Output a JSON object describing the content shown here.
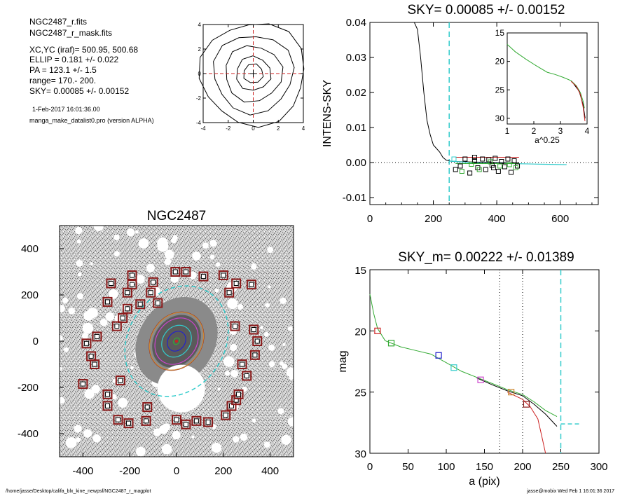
{
  "header": {
    "line1": "NGC2487_r.fits",
    "line2": "NGC2487_r_mask.fits",
    "line3": "XC,YC (iraf)=   500.95, 500.68",
    "line4": "ELLIP = 0.181 +/- 0.022",
    "line5": "PA    = 123.1 +/-   1.5",
    "line6": "range=  170.-  200.",
    "line7": "SKY= 0.00085 +/- 0.00152",
    "date": "1-Feb-2017 16:01:36.00",
    "program": "manga_make_datalist0.pro (version ALPHA)"
  },
  "footer": {
    "path": "/home/jasse/Desktop/califa_blx_kine_newpsf/NGC2487_r_magplot",
    "user": "jasse@mobix  Wed Feb  1 16:01:36 2017"
  },
  "colors": {
    "black": "#000000",
    "red": "#cc2222",
    "green": "#33aa33",
    "cyan": "#33cccc",
    "blue": "#2222cc",
    "magenta": "#cc44cc",
    "orange": "#cc8833",
    "darkred": "#8b1a1a"
  },
  "chart_data": [
    {
      "id": "centroid",
      "type": "contour",
      "xlim": [
        -4,
        4
      ],
      "ylim": [
        -4,
        4
      ],
      "xticks": [
        "-4",
        "-2",
        "0",
        "2",
        "4"
      ],
      "yticks": [
        "4",
        "2",
        "0",
        "-2",
        "-4"
      ],
      "contour_radii": [
        0.8,
        1.4,
        2.3,
        3.2,
        4.2
      ]
    },
    {
      "id": "sky",
      "type": "line",
      "title": "SKY= 0.00085 +/- 0.00152",
      "ylabel": "INTENS-SKY",
      "xlim": [
        0,
        720
      ],
      "ylim": [
        -0.012,
        0.04
      ],
      "xticks": [
        "0",
        "200",
        "400",
        "600"
      ],
      "yticks": [
        "0.04",
        "0.03",
        "0.02",
        "0.01",
        "0.00",
        "-0.01"
      ],
      "sky_radius": 250,
      "profile": [
        [
          120,
          0.04
        ],
        [
          140,
          0.04
        ],
        [
          150,
          0.038
        ],
        [
          160,
          0.03
        ],
        [
          170,
          0.02
        ],
        [
          180,
          0.012
        ],
        [
          190,
          0.008
        ],
        [
          200,
          0.005
        ],
        [
          210,
          0.004
        ],
        [
          220,
          0.003
        ],
        [
          230,
          0.0015
        ],
        [
          240,
          0.0007
        ],
        [
          250,
          0.0005
        ],
        [
          260,
          0.0003
        ],
        [
          300,
          0.0002
        ],
        [
          350,
          0.0001
        ],
        [
          420,
          0.0
        ],
        [
          470,
          -0.0001
        ]
      ],
      "tail": [
        [
          250,
          0.0004
        ],
        [
          350,
          -0.0002
        ],
        [
          450,
          -0.0003
        ],
        [
          550,
          -0.0005
        ],
        [
          620,
          -0.0006
        ]
      ],
      "boxes_black": [
        [
          270,
          -0.002
        ],
        [
          285,
          -0.001
        ],
        [
          300,
          0.001
        ],
        [
          315,
          -0.003
        ],
        [
          330,
          0.0005
        ],
        [
          340,
          -0.0015
        ],
        [
          355,
          0.001
        ],
        [
          365,
          -0.002
        ],
        [
          375,
          0.0008
        ],
        [
          385,
          -0.0008
        ],
        [
          395,
          0.0012
        ],
        [
          405,
          -0.0025
        ],
        [
          415,
          0.0003
        ],
        [
          425,
          -0.0012
        ],
        [
          435,
          0.001
        ],
        [
          445,
          -0.0028
        ],
        [
          455,
          0.0005
        ],
        [
          465,
          -0.001
        ],
        [
          330,
          0.0015
        ],
        [
          390,
          -0.0015
        ]
      ],
      "boxes_green": [
        [
          290,
          -0.0025
        ],
        [
          320,
          -0.0005
        ],
        [
          345,
          -0.002
        ],
        [
          380,
          0.0002
        ],
        [
          410,
          -0.001
        ],
        [
          440,
          -0.0006
        ],
        [
          460,
          -0.0015
        ]
      ],
      "boxes_cyan": [
        [
          265,
          0.001
        ]
      ],
      "inset": {
        "xlabel": "a^0.25",
        "xlim": [
          1,
          4
        ],
        "ylim": [
          15,
          31
        ],
        "xticks": [
          "1",
          "2",
          "3",
          "4"
        ],
        "yticks": [
          "15",
          "20",
          "25",
          "30"
        ],
        "green": [
          [
            1.0,
            17.0
          ],
          [
            1.3,
            18.3
          ],
          [
            1.7,
            19.6
          ],
          [
            2.1,
            20.8
          ],
          [
            2.5,
            21.9
          ],
          [
            2.8,
            22.3
          ],
          [
            3.1,
            22.8
          ],
          [
            3.4,
            23.4
          ],
          [
            3.6,
            24.3
          ],
          [
            3.75,
            25.5
          ],
          [
            3.85,
            27.0
          ],
          [
            3.9,
            28.2
          ]
        ],
        "red": [
          [
            3.4,
            23.5
          ],
          [
            3.6,
            24.4
          ],
          [
            3.75,
            25.8
          ],
          [
            3.85,
            28.0
          ],
          [
            3.92,
            30.5
          ]
        ],
        "black": [
          [
            3.5,
            24.0
          ],
          [
            3.7,
            25.2
          ],
          [
            3.85,
            27.6
          ],
          [
            3.93,
            30.0
          ]
        ]
      }
    },
    {
      "id": "image",
      "type": "image",
      "title": "NGC2487",
      "xlim": [
        -500,
        500
      ],
      "ylim": [
        -500,
        500
      ],
      "xticks": [
        "-400",
        "-200",
        "0",
        "200",
        "400"
      ],
      "yticks": [
        "400",
        "200",
        "0",
        "-200",
        "-400"
      ],
      "sky_boxes": [
        [
          -5,
          300
        ],
        [
          -190,
          285
        ],
        [
          -280,
          250
        ],
        [
          -190,
          245
        ],
        [
          -100,
          255
        ],
        [
          -110,
          210
        ],
        [
          -210,
          210
        ],
        [
          -80,
          165
        ],
        [
          -295,
          170
        ],
        [
          -155,
          160
        ],
        [
          -210,
          140
        ],
        [
          40,
          300
        ],
        [
          115,
          280
        ],
        [
          200,
          285
        ],
        [
          255,
          250
        ],
        [
          320,
          245
        ],
        [
          225,
          210
        ],
        [
          -230,
          100
        ],
        [
          -255,
          65
        ],
        [
          -340,
          20
        ],
        [
          -385,
          -10
        ],
        [
          -365,
          -65
        ],
        [
          -350,
          -100
        ],
        [
          -400,
          -185
        ],
        [
          -240,
          -170
        ],
        [
          -295,
          -230
        ],
        [
          -295,
          -280
        ],
        [
          -250,
          -340
        ],
        [
          -205,
          -355
        ],
        [
          -125,
          -285
        ],
        [
          -130,
          -345
        ],
        [
          0,
          -340
        ],
        [
          40,
          -360
        ],
        [
          85,
          -345
        ],
        [
          135,
          -350
        ],
        [
          210,
          -320
        ],
        [
          235,
          -280
        ],
        [
          255,
          -255
        ],
        [
          265,
          -230
        ],
        [
          300,
          -150
        ],
        [
          280,
          -100
        ],
        [
          335,
          -60
        ],
        [
          345,
          0
        ],
        [
          330,
          50
        ],
        [
          250,
          65
        ]
      ],
      "ellipses": [
        {
          "color": "darkred",
          "a": 220,
          "b": 180
        },
        {
          "color": "orange",
          "a": 218,
          "b": 178
        },
        {
          "color": "magenta",
          "a": 175,
          "b": 143
        },
        {
          "color": "cyan",
          "a": 120,
          "b": 98
        },
        {
          "color": "blue",
          "a": 75,
          "b": 61
        },
        {
          "color": "green",
          "a": 25,
          "b": 20
        },
        {
          "color": "red",
          "a": 5,
          "b": 4
        }
      ],
      "sky_annulus": [
        250,
        205
      ]
    },
    {
      "id": "mag",
      "type": "line",
      "title": "SKY_m=  0.00222 +/- 0.01389",
      "xlabel": "a (pix)",
      "ylabel": "mag",
      "xlim": [
        0,
        300
      ],
      "ylim": [
        15,
        30
      ],
      "xticks": [
        "0",
        "50",
        "100",
        "150",
        "200",
        "250",
        "300"
      ],
      "yticks": [
        "15",
        "20",
        "25",
        "30"
      ],
      "range_lines": [
        170,
        200
      ],
      "sky_line": 250,
      "sky_mag": 27.6,
      "green": [
        [
          0,
          17.0
        ],
        [
          5,
          18.6
        ],
        [
          10,
          19.8
        ],
        [
          20,
          20.8
        ],
        [
          40,
          21.3
        ],
        [
          60,
          21.6
        ],
        [
          80,
          21.9
        ],
        [
          100,
          22.6
        ],
        [
          120,
          23.3
        ],
        [
          140,
          23.8
        ],
        [
          160,
          24.3
        ],
        [
          180,
          24.8
        ],
        [
          200,
          25.2
        ],
        [
          215,
          25.8
        ],
        [
          230,
          26.5
        ],
        [
          245,
          27.0
        ]
      ],
      "black": [
        [
          140,
          23.85
        ],
        [
          160,
          24.4
        ],
        [
          180,
          24.9
        ],
        [
          200,
          25.3
        ],
        [
          215,
          26.0
        ],
        [
          230,
          26.8
        ],
        [
          245,
          27.8
        ]
      ],
      "red": [
        [
          180,
          25.0
        ],
        [
          200,
          25.6
        ],
        [
          210,
          26.2
        ],
        [
          220,
          27.2
        ],
        [
          225,
          28.6
        ],
        [
          230,
          30.0
        ]
      ],
      "symbols": [
        {
          "x": 10,
          "y": 20.0,
          "color": "red"
        },
        {
          "x": 28,
          "y": 21.0,
          "color": "green"
        },
        {
          "x": 90,
          "y": 22.0,
          "color": "blue"
        },
        {
          "x": 110,
          "y": 23.0,
          "color": "cyan"
        },
        {
          "x": 145,
          "y": 24.0,
          "color": "magenta"
        },
        {
          "x": 185,
          "y": 25.0,
          "color": "orange"
        },
        {
          "x": 205,
          "y": 26.0,
          "color": "darkred"
        }
      ]
    }
  ]
}
